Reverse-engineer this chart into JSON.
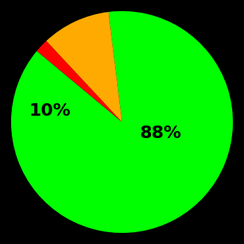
{
  "slices": [
    88,
    2,
    10
  ],
  "colors": [
    "#00ff00",
    "#ff0000",
    "#ffaa00"
  ],
  "labels": [
    "88%",
    "",
    "10%"
  ],
  "label_colors": [
    "black",
    "black",
    "black"
  ],
  "background_color": "#000000",
  "startangle": 97,
  "figsize": [
    3.5,
    3.5
  ],
  "dpi": 100
}
